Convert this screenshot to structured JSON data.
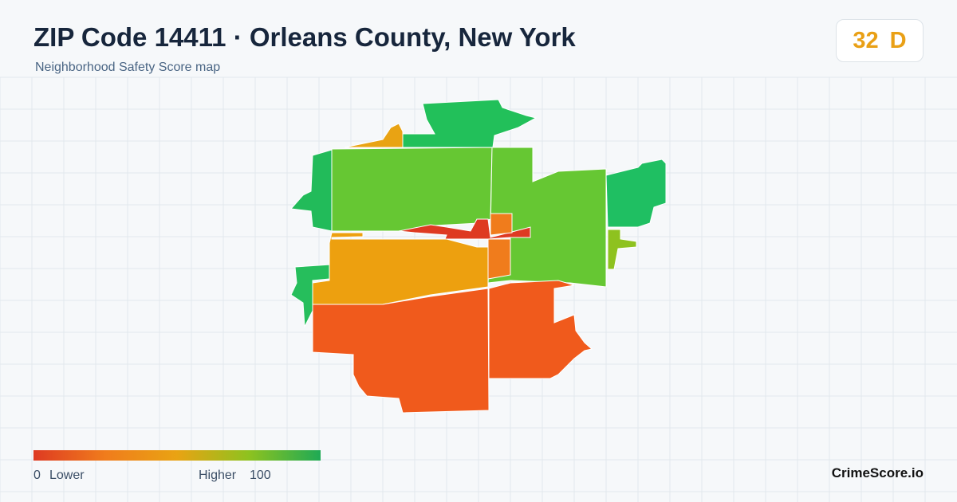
{
  "header": {
    "title": "ZIP Code 14411 · Orleans County, New York",
    "subtitle": "Neighborhood Safety Score map"
  },
  "badge": {
    "score": 32,
    "grade": "D"
  },
  "legend": {
    "min": 0,
    "min_label": "Lower",
    "max_label": "Higher",
    "max": 100
  },
  "brand": "CrimeScore.io"
}
